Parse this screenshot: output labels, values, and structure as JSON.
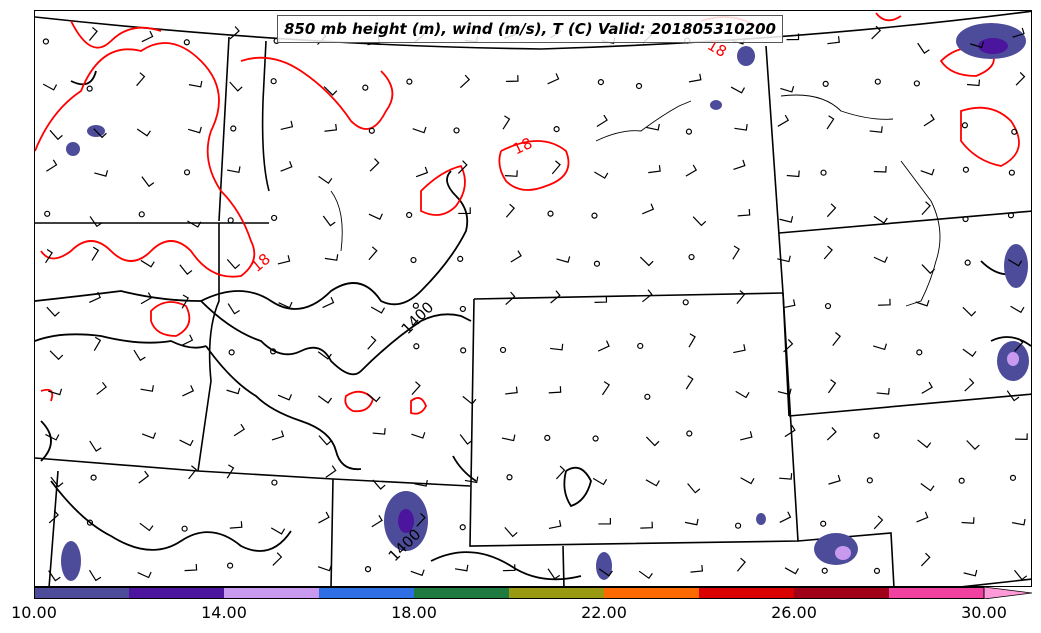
{
  "title": "850 mb height (m), wind (m/s), T (C) Valid: 201805310200",
  "contour_labels": {
    "temp_a": "18",
    "temp_b": "18",
    "temp_c": "18",
    "height_a": "1400",
    "height_b": "1400"
  },
  "colorbar": {
    "bins": [
      10,
      12,
      14,
      16,
      18,
      20,
      22,
      24,
      26,
      28,
      30
    ],
    "colors": [
      "#4c4c9a",
      "#4b159e",
      "#c79af0",
      "#2e6fe6",
      "#1e7a3e",
      "#9a9a12",
      "#ff6a00",
      "#d90000",
      "#a00018",
      "#f040a0",
      "#ff9ad8"
    ],
    "extend": "max",
    "tick_labels": [
      "10.00",
      "14.00",
      "18.00",
      "22.00",
      "26.00",
      "30.00"
    ]
  },
  "legend_colors": {
    "height_contour": "#000000",
    "temperature_contour": "#ff0000",
    "state_borders": "#000000"
  }
}
